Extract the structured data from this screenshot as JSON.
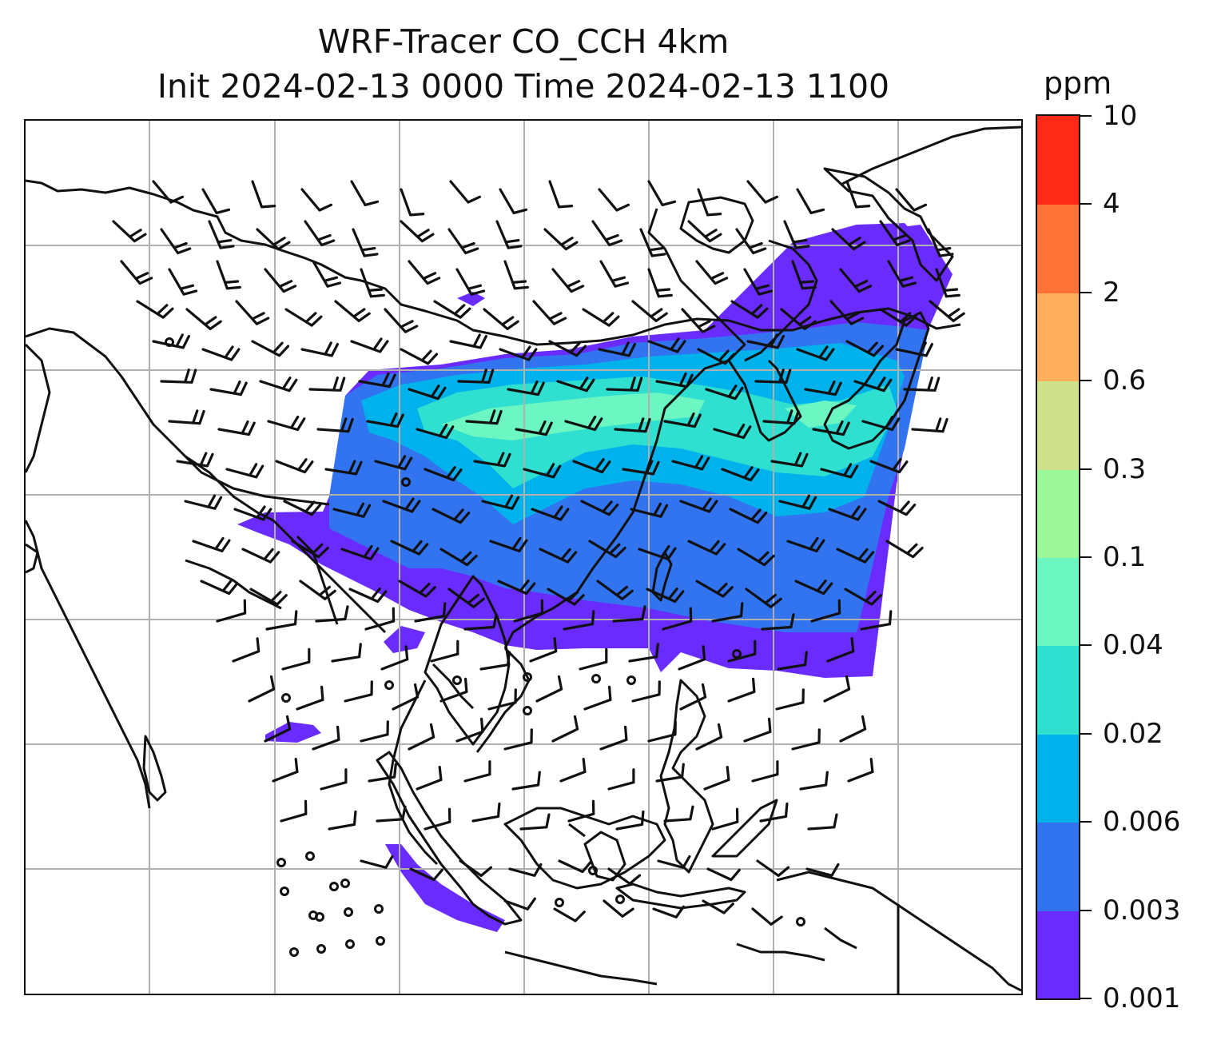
{
  "title": {
    "line1": "WRF-Tracer CO_CCH 4km",
    "line2": "Init 2024-02-13 0000 Time 2024-02-13 1100"
  },
  "colorbar": {
    "unit": "ppm",
    "levels": [
      "0.001",
      "0.003",
      "0.006",
      "0.02",
      "0.04",
      "0.1",
      "0.3",
      "0.6",
      "2",
      "4",
      "10"
    ],
    "colors": [
      "#6a2bff",
      "#3273f0",
      "#00b2ec",
      "#2fe0d0",
      "#6cf6c2",
      "#9cf79a",
      "#cfe08a",
      "#ffae5c",
      "#ff7338",
      "#ff2a16"
    ]
  },
  "map": {
    "layers": [
      "coastlines",
      "country-borders",
      "gridlines",
      "co-tracer-concentration",
      "wind-barbs"
    ],
    "wind_barb_color": "#111111",
    "gridline_color": "#b0b0b0"
  }
}
